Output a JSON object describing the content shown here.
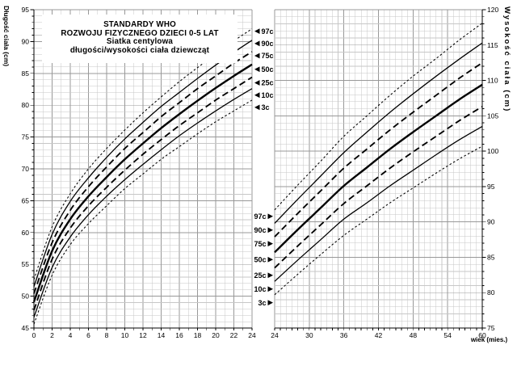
{
  "title": {
    "lines": [
      "STANDARDY WHO",
      "ROZWOJU FIZYCZNEGO DZIECI 0-5 LAT",
      "Siatka centylowa",
      "długości/wysokości ciała dziewcząt"
    ]
  },
  "axis_labels": {
    "left_y": "Długość ciała (cm)",
    "right_y": "Wysokość ciała (cm)",
    "x": "wiek (mies.)"
  },
  "colors": {
    "curve": "#000000",
    "grid_minor": "#c7c7c7",
    "grid_major": "#989898",
    "axis": "#000000",
    "background": "#ffffff",
    "text": "#000000"
  },
  "chart_data": [
    {
      "type": "line",
      "panel": "left",
      "ylabel": "Długość ciała (cm)",
      "xlim": [
        0,
        24
      ],
      "ylim": [
        45,
        95
      ],
      "xticks": [
        0,
        2,
        4,
        6,
        8,
        10,
        12,
        14,
        16,
        18,
        20,
        22,
        24
      ],
      "yticks": [
        45,
        50,
        55,
        60,
        65,
        70,
        75,
        80,
        85,
        90,
        95
      ],
      "x_minor_step": 1,
      "y_minor_step": 1,
      "grid": true,
      "legend_position": "right-of-plot",
      "label_arrow": "◀",
      "x": [
        0,
        2,
        4,
        6,
        8,
        10,
        12,
        14,
        16,
        18,
        20,
        22,
        24
      ],
      "series": [
        {
          "name": "97c",
          "style": "dash-fine",
          "values": [
            52.6,
            60.9,
            66.1,
            70.0,
            73.2,
            76.1,
            78.8,
            81.3,
            83.7,
            85.9,
            88.0,
            90.1,
            92.0
          ]
        },
        {
          "name": "90c",
          "style": "solid-thin",
          "values": [
            51.5,
            59.7,
            64.9,
            68.6,
            71.8,
            74.7,
            77.3,
            79.8,
            82.0,
            84.2,
            86.3,
            88.3,
            90.2
          ]
        },
        {
          "name": "75c",
          "style": "dash",
          "values": [
            50.4,
            58.4,
            63.5,
            67.2,
            70.3,
            73.2,
            75.7,
            78.2,
            80.4,
            82.6,
            84.6,
            86.6,
            88.4
          ]
        },
        {
          "name": "50c",
          "style": "solid-thick",
          "values": [
            49.1,
            57.1,
            62.1,
            65.7,
            68.7,
            71.5,
            74.0,
            76.4,
            78.6,
            80.7,
            82.7,
            84.6,
            86.4
          ]
        },
        {
          "name": "25c",
          "style": "dash",
          "values": [
            47.8,
            55.8,
            60.7,
            64.2,
            67.1,
            69.8,
            72.3,
            74.6,
            76.8,
            78.8,
            80.8,
            82.6,
            84.4
          ]
        },
        {
          "name": "10c",
          "style": "solid-thin",
          "values": [
            46.7,
            54.5,
            59.3,
            62.8,
            65.7,
            68.3,
            70.7,
            73.0,
            75.2,
            77.2,
            79.1,
            80.9,
            82.6
          ]
        },
        {
          "name": "3c",
          "style": "dash-fine",
          "values": [
            45.6,
            53.3,
            58.1,
            61.4,
            64.2,
            66.9,
            69.2,
            71.5,
            73.5,
            75.5,
            77.4,
            79.1,
            80.8
          ]
        }
      ]
    },
    {
      "type": "line",
      "panel": "right",
      "ylabel": "Wysokość ciała (cm)",
      "xlabel": "wiek (mies.)",
      "xlim": [
        24,
        60
      ],
      "ylim": [
        75,
        120
      ],
      "xticks": [
        24,
        30,
        36,
        42,
        48,
        54,
        60
      ],
      "yticks": [
        75,
        80,
        85,
        90,
        95,
        100,
        105,
        110,
        115,
        120
      ],
      "x_minor_step": 1,
      "y_minor_step": 1,
      "grid": true,
      "legend_position": "left-of-plot",
      "label_arrow": "▶",
      "x": [
        24,
        28,
        32,
        36,
        40,
        44,
        48,
        52,
        56,
        60
      ],
      "series": [
        {
          "name": "97c",
          "style": "dash-fine",
          "values": [
            91.7,
            95.2,
            98.6,
            102.1,
            105.0,
            107.9,
            110.6,
            113.1,
            115.7,
            118.1
          ]
        },
        {
          "name": "90c",
          "style": "solid-thin",
          "values": [
            89.8,
            93.2,
            96.5,
            99.8,
            102.7,
            105.5,
            108.1,
            110.6,
            113.0,
            115.3
          ]
        },
        {
          "name": "75c",
          "style": "dash",
          "values": [
            87.9,
            91.2,
            94.4,
            97.6,
            100.3,
            103.0,
            105.5,
            107.9,
            110.3,
            112.5
          ]
        },
        {
          "name": "50c",
          "style": "solid-thick",
          "values": [
            85.7,
            88.9,
            92.0,
            95.1,
            97.7,
            100.3,
            102.7,
            105.0,
            107.3,
            109.4
          ]
        },
        {
          "name": "25c",
          "style": "dash",
          "values": [
            83.5,
            86.6,
            89.6,
            92.6,
            95.1,
            97.6,
            99.9,
            102.1,
            104.3,
            106.3
          ]
        },
        {
          "name": "10c",
          "style": "solid-thin",
          "values": [
            81.6,
            84.6,
            87.5,
            90.4,
            92.7,
            95.1,
            97.3,
            99.5,
            101.6,
            103.5
          ]
        },
        {
          "name": "3c",
          "style": "dash-fine",
          "values": [
            79.7,
            82.6,
            85.4,
            88.1,
            90.4,
            92.7,
            94.8,
            96.9,
            98.9,
            100.7
          ]
        }
      ]
    }
  ]
}
